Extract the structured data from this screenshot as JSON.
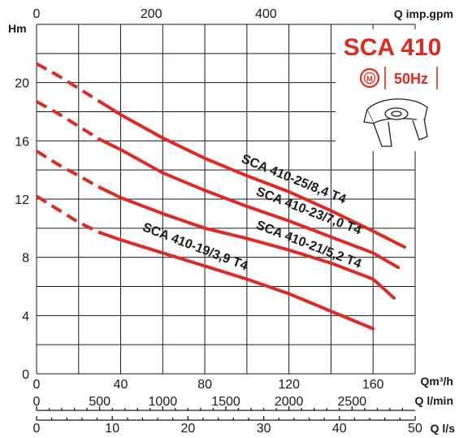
{
  "chart_data": {
    "type": "line",
    "xlabel": "Qm³/h",
    "ylabel": "Hm",
    "xlim": [
      0,
      180
    ],
    "ylim": [
      0,
      24
    ],
    "x_ticks": [
      "0",
      "40",
      "80",
      "120",
      "160"
    ],
    "y_ticks": [
      "0",
      "4",
      "8",
      "12",
      "16",
      "20"
    ],
    "secondary_axes": {
      "top": {
        "label": "Q imp.gpm",
        "ticks": [
          "0",
          "200",
          "400"
        ]
      },
      "lpm": {
        "label": "Q l/min",
        "ticks": [
          "0",
          "500",
          "1000",
          "1500",
          "2000",
          "2500"
        ]
      },
      "lps": {
        "label": "Q l/s",
        "ticks": [
          "0",
          "10",
          "20",
          "30",
          "40",
          "50"
        ]
      }
    },
    "series": [
      {
        "name": "SCA 410-25/8,4 T4",
        "dashed": [
          [
            0,
            21.3
          ],
          [
            10,
            20.5
          ],
          [
            20,
            19.6
          ],
          [
            30,
            18.7
          ]
        ],
        "solid": [
          [
            30,
            18.7
          ],
          [
            40,
            17.8
          ],
          [
            60,
            16.2
          ],
          [
            80,
            14.8
          ],
          [
            100,
            13.6
          ],
          [
            120,
            12.5
          ],
          [
            140,
            11.2
          ],
          [
            160,
            9.8
          ],
          [
            175,
            8.7
          ]
        ]
      },
      {
        "name": "SCA 410-23/7,0 T4",
        "dashed": [
          [
            0,
            18.7
          ],
          [
            10,
            17.9
          ],
          [
            20,
            17.0
          ],
          [
            30,
            16.1
          ]
        ],
        "solid": [
          [
            30,
            16.1
          ],
          [
            40,
            15.4
          ],
          [
            60,
            13.8
          ],
          [
            80,
            12.6
          ],
          [
            100,
            11.5
          ],
          [
            120,
            10.5
          ],
          [
            140,
            9.4
          ],
          [
            160,
            8.3
          ],
          [
            172,
            7.3
          ]
        ]
      },
      {
        "name": "SCA 410-21/5,2 T4",
        "dashed": [
          [
            0,
            15.3
          ],
          [
            10,
            14.4
          ],
          [
            20,
            13.6
          ],
          [
            30,
            12.8
          ]
        ],
        "solid": [
          [
            30,
            12.8
          ],
          [
            40,
            12.1
          ],
          [
            60,
            11.0
          ],
          [
            80,
            10.0
          ],
          [
            100,
            9.3
          ],
          [
            120,
            8.5
          ],
          [
            140,
            7.6
          ],
          [
            160,
            6.5
          ],
          [
            170,
            5.2
          ]
        ]
      },
      {
        "name": "SCA 410-19/3,9 T4",
        "dashed": [
          [
            0,
            12.2
          ],
          [
            10,
            11.3
          ],
          [
            20,
            10.4
          ],
          [
            30,
            9.7
          ]
        ],
        "solid": [
          [
            30,
            9.7
          ],
          [
            40,
            9.2
          ],
          [
            60,
            8.3
          ],
          [
            80,
            7.4
          ],
          [
            100,
            6.5
          ],
          [
            120,
            5.5
          ],
          [
            140,
            4.3
          ],
          [
            160,
            3.1
          ]
        ]
      }
    ],
    "curve_color": "#dd2a22"
  },
  "inset": {
    "model": "SCA 410",
    "frequency": "50Hz",
    "motor_symbol": "M",
    "motor_icon": "motor-icon",
    "product_icon": "impeller-icon",
    "accent_color": "#dd2a22"
  }
}
